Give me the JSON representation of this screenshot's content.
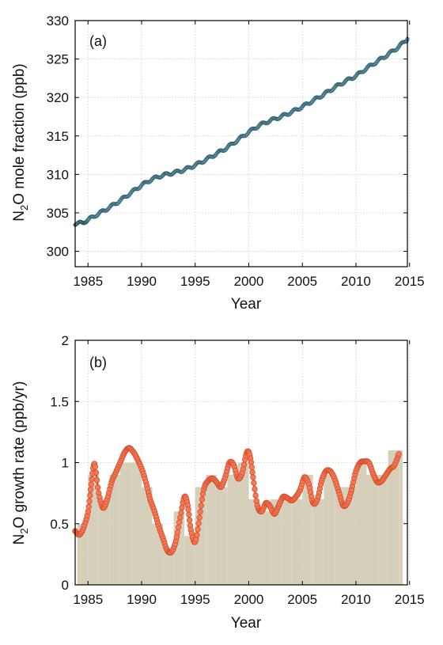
{
  "chart_data": [
    {
      "type": "line",
      "panel_label": "(a)",
      "xlabel": "Year",
      "ylabel_main": "N",
      "ylabel_sub": "2",
      "ylabel_rest": "O mole fraction (ppb)",
      "xlim": [
        1983.8,
        2014.8
      ],
      "ylim": [
        298,
        330
      ],
      "x_ticks": [
        "1985",
        "1990",
        "1995",
        "2000",
        "2005",
        "2010",
        "2015"
      ],
      "y_ticks": [
        "300",
        "305",
        "310",
        "315",
        "320",
        "325",
        "330"
      ],
      "grid": true,
      "series": [
        {
          "marker_color": "#5a9fb6",
          "x": [
            1983.8,
            1984.5,
            1985.0,
            1986.0,
            1987.0,
            1988.0,
            1989.0,
            1990.0,
            1991.0,
            1992.0,
            1993.0,
            1994.0,
            1995.0,
            1996.0,
            1997.0,
            1998.0,
            1999.0,
            2000.0,
            2001.0,
            2002.0,
            2003.0,
            2004.0,
            2005.0,
            2006.0,
            2007.0,
            2008.0,
            2009.0,
            2010.0,
            2011.0,
            2012.0,
            2013.0,
            2014.0,
            2014.8
          ],
          "y": [
            303.6,
            303.7,
            304.1,
            304.9,
            305.7,
            306.6,
            307.6,
            308.6,
            309.4,
            309.9,
            310.2,
            310.6,
            311.2,
            311.9,
            312.7,
            313.5,
            314.5,
            315.5,
            316.4,
            317.0,
            317.5,
            318.1,
            318.8,
            319.6,
            320.4,
            321.3,
            322.1,
            322.8,
            323.8,
            324.7,
            325.6,
            326.6,
            327.6
          ]
        }
      ]
    },
    {
      "type": "bar+line",
      "panel_label": "(b)",
      "xlabel": "Year",
      "ylabel_main": "N",
      "ylabel_sub": "2",
      "ylabel_rest": "O growth rate (ppb/yr)",
      "xlim": [
        1983.8,
        2014.8
      ],
      "ylim": [
        0,
        2
      ],
      "x_ticks": [
        "1985",
        "1990",
        "1995",
        "2000",
        "2005",
        "2010",
        "2015"
      ],
      "y_ticks": [
        "0",
        "0.5",
        "1",
        "1.5",
        "2"
      ],
      "grid": true,
      "annual_bars": {
        "color": "#d6d0bb",
        "years": [
          1984,
          1985,
          1986,
          1987,
          1988,
          1989,
          1990,
          1991,
          1992,
          1993,
          1994,
          1995,
          1996,
          1997,
          1998,
          1999,
          2000,
          2001,
          2002,
          2003,
          2004,
          2005,
          2006,
          2007,
          2008,
          2009,
          2010,
          2011,
          2012,
          2013,
          2014
        ],
        "values": [
          0.5,
          0.9,
          0.7,
          0.9,
          1.0,
          1.0,
          0.8,
          0.5,
          0.3,
          0.6,
          0.4,
          0.8,
          0.9,
          0.8,
          0.9,
          1.0,
          0.7,
          0.6,
          0.7,
          0.7,
          0.7,
          0.9,
          0.7,
          0.9,
          0.8,
          0.8,
          1.0,
          0.9,
          0.9,
          1.1,
          1.1
        ]
      },
      "monthly_series": {
        "marker_color": "#f07a5a",
        "x": [
          1983.8,
          1984.2,
          1984.6,
          1985.0,
          1985.3,
          1985.6,
          1986.0,
          1986.4,
          1986.8,
          1987.2,
          1987.6,
          1988.0,
          1988.4,
          1988.8,
          1989.2,
          1989.6,
          1990.0,
          1990.4,
          1990.8,
          1991.2,
          1991.6,
          1992.0,
          1992.4,
          1992.8,
          1993.2,
          1993.6,
          1994.0,
          1994.3,
          1994.6,
          1995.0,
          1995.4,
          1995.8,
          1996.2,
          1996.6,
          1997.0,
          1997.4,
          1997.8,
          1998.2,
          1998.6,
          1999.0,
          1999.4,
          1999.8,
          2000.1,
          2000.4,
          2000.8,
          2001.2,
          2001.6,
          2002.0,
          2002.4,
          2002.8,
          2003.2,
          2003.6,
          2004.0,
          2004.4,
          2004.8,
          2005.2,
          2005.6,
          2006.0,
          2006.4,
          2006.8,
          2007.2,
          2007.6,
          2008.0,
          2008.4,
          2008.8,
          2009.2,
          2009.6,
          2010.0,
          2010.4,
          2010.8,
          2011.2,
          2011.6,
          2012.0,
          2012.4,
          2012.8,
          2013.2,
          2013.6,
          2014.0
        ],
        "y": [
          0.44,
          0.41,
          0.47,
          0.6,
          0.82,
          0.99,
          0.75,
          0.63,
          0.7,
          0.84,
          0.92,
          1.0,
          1.08,
          1.12,
          1.09,
          1.03,
          0.95,
          0.84,
          0.7,
          0.6,
          0.48,
          0.38,
          0.28,
          0.27,
          0.36,
          0.55,
          0.72,
          0.65,
          0.45,
          0.35,
          0.55,
          0.78,
          0.85,
          0.87,
          0.84,
          0.8,
          0.88,
          1.0,
          0.98,
          0.87,
          0.92,
          1.08,
          1.06,
          0.88,
          0.65,
          0.6,
          0.67,
          0.64,
          0.58,
          0.65,
          0.72,
          0.71,
          0.69,
          0.72,
          0.78,
          0.88,
          0.82,
          0.67,
          0.7,
          0.85,
          0.93,
          0.93,
          0.87,
          0.76,
          0.65,
          0.67,
          0.78,
          0.93,
          1.0,
          1.01,
          1.0,
          0.91,
          0.84,
          0.85,
          0.9,
          0.95,
          0.98,
          1.07
        ]
      }
    }
  ]
}
